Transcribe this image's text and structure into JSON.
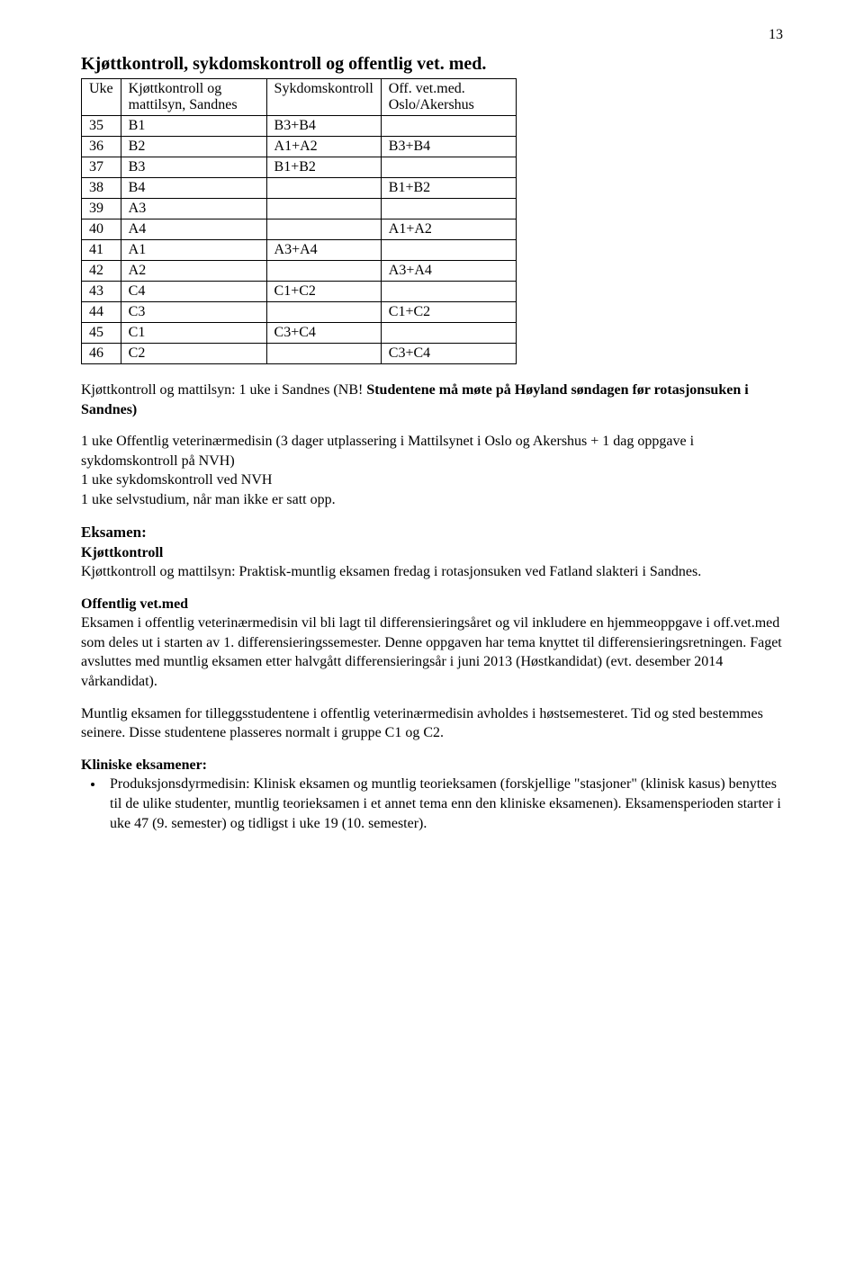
{
  "page_number": "13",
  "title": "Kjøttkontroll, sykdomskontroll og offentlig vet. med.",
  "table": {
    "headers": [
      "Uke",
      "Kjøttkontroll og mattilsyn, Sandnes",
      "Sykdomskontroll",
      "Off. vet.med. Oslo/Akershus"
    ],
    "rows": [
      [
        "35",
        "B1",
        "B3+B4",
        ""
      ],
      [
        "36",
        "B2",
        "A1+A2",
        "B3+B4"
      ],
      [
        "37",
        "B3",
        "B1+B2",
        ""
      ],
      [
        "38",
        "B4",
        "",
        "B1+B2"
      ],
      [
        "39",
        "A3",
        "",
        ""
      ],
      [
        "40",
        "A4",
        "",
        "A1+A2"
      ],
      [
        "41",
        "A1",
        "A3+A4",
        ""
      ],
      [
        "42",
        "A2",
        "",
        "A3+A4"
      ],
      [
        "43",
        "C4",
        "C1+C2",
        ""
      ],
      [
        "44",
        "C3",
        "",
        "C1+C2"
      ],
      [
        "45",
        "C1",
        "C3+C4",
        ""
      ],
      [
        "46",
        "C2",
        "",
        "C3+C4"
      ]
    ]
  },
  "para1_a": "Kjøttkontroll og mattilsyn: 1 uke i Sandnes (NB! ",
  "para1_b": "Studentene må møte på Høyland søndagen før rotasjonsuken i Sandnes)",
  "para2": "1 uke Offentlig veterinærmedisin (3 dager utplassering i Mattilsynet i Oslo og Akershus + 1 dag oppgave i sykdomskontroll på NVH)\n1 uke sykdomskontroll ved NVH\n1 uke selvstudium, når man ikke er satt opp.",
  "eksamen_head": "Eksamen:",
  "kjott_head": "Kjøttkontroll",
  "kjott_text": "Kjøttkontroll og mattilsyn: Praktisk-muntlig eksamen fredag i rotasjonsuken ved Fatland slakteri i Sandnes.",
  "offvm_head": "Offentlig vet.med",
  "offvm_text": "Eksamen i offentlig veterinærmedisin vil bli lagt til differensieringsåret og vil inkludere en hjemmeoppgave i off.vet.med som deles ut i starten av 1. differensieringssemester. Denne oppgaven har tema knyttet til differensieringsretningen. Faget avsluttes med muntlig eksamen etter halvgått differensieringsår i juni 2013 (Høstkandidat) (evt. desember 2014 vårkandidat).",
  "muntlig_text": "Muntlig eksamen for tilleggsstudentene i offentlig veterinærmedisin avholdes i høstsemesteret. Tid og sted bestemmes seinere. Disse studentene plasseres normalt i gruppe C1 og C2.",
  "klinisk_head": "Kliniske eksamener:",
  "bullet1": "Produksjonsdyrmedisin: Klinisk eksamen og muntlig teorieksamen (forskjellige \"stasjoner\" (klinisk kasus) benyttes til de ulike studenter, muntlig teorieksamen i et annet tema enn den kliniske eksamenen). Eksamensperioden starter i uke 47 (9. semester) og tidligst i uke 19 (10. semester)."
}
